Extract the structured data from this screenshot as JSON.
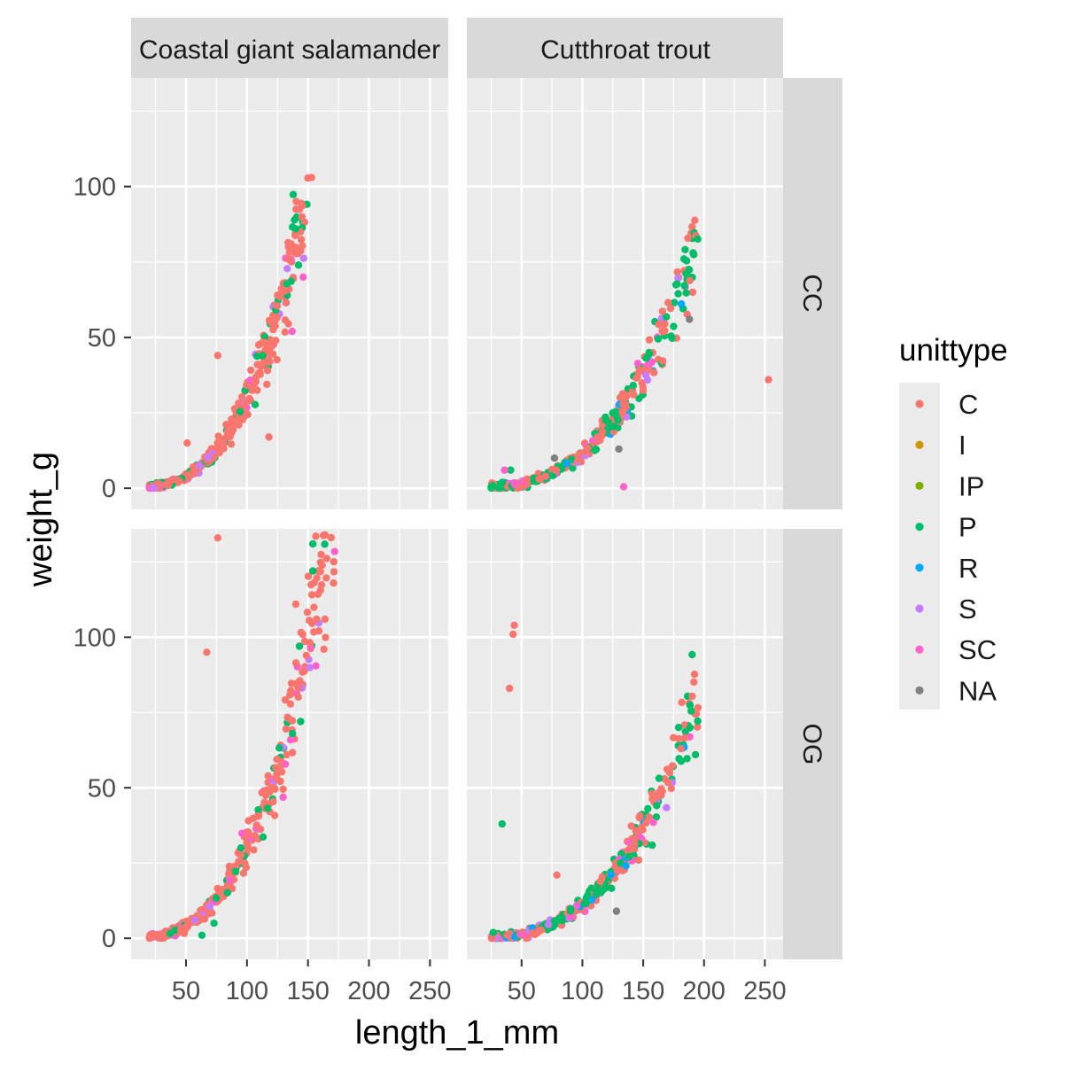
{
  "chart_data": {
    "type": "scatter",
    "xlabel": "length_1_mm",
    "ylabel": "weight_g",
    "xlim": [
      5,
      265
    ],
    "ylim": [
      -7,
      136
    ],
    "x_ticks": [
      50,
      100,
      150,
      200,
      250
    ],
    "x_tick_labels": [
      "50",
      "100",
      "150",
      "200",
      "250"
    ],
    "y_ticks": [
      0,
      50,
      100
    ],
    "y_tick_labels": [
      "0",
      "50",
      "100"
    ],
    "grid": true,
    "facet_cols": [
      "Coastal giant salamander",
      "Cutthroat trout"
    ],
    "facet_rows": [
      "CC",
      "OG"
    ],
    "legend": {
      "title": "unittype",
      "position": "right",
      "entries": [
        {
          "label": "C",
          "color": "#F8766D"
        },
        {
          "label": "I",
          "color": "#CD9600"
        },
        {
          "label": "IP",
          "color": "#7CAE00"
        },
        {
          "label": "P",
          "color": "#00BE67"
        },
        {
          "label": "R",
          "color": "#00A9FF"
        },
        {
          "label": "S",
          "color": "#C77CFF"
        },
        {
          "label": "SC",
          "color": "#FF61CC"
        },
        {
          "label": "NA",
          "color": "#808080"
        }
      ]
    },
    "panels": [
      {
        "col": "Coastal giant salamander",
        "row": "CC",
        "curve": {
          "a": 4.75e-05,
          "b": 2.9,
          "x_range": [
            20,
            150
          ]
        },
        "outliers": [
          {
            "x": 153,
            "y": 103,
            "unittype": "C"
          },
          {
            "x": 145,
            "y": 90,
            "unittype": "C"
          },
          {
            "x": 140,
            "y": 86,
            "unittype": "P"
          },
          {
            "x": 134,
            "y": 80,
            "unittype": "C"
          },
          {
            "x": 76,
            "y": 44,
            "unittype": "C"
          },
          {
            "x": 118,
            "y": 17,
            "unittype": "C"
          },
          {
            "x": 51,
            "y": 15,
            "unittype": "C"
          },
          {
            "x": 137,
            "y": 52,
            "unittype": "SC"
          }
        ]
      },
      {
        "col": "Cutthroat trout",
        "row": "CC",
        "curve": {
          "a": 1.45e-05,
          "b": 2.95,
          "x_range": [
            25,
            195
          ]
        },
        "outliers": [
          {
            "x": 253,
            "y": 36,
            "unittype": "C"
          },
          {
            "x": 134,
            "y": 0.5,
            "unittype": "SC"
          },
          {
            "x": 41,
            "y": 6,
            "unittype": "P"
          },
          {
            "x": 36,
            "y": 6,
            "unittype": "SC"
          },
          {
            "x": 130,
            "y": 13,
            "unittype": "NA"
          },
          {
            "x": 77,
            "y": 10,
            "unittype": "NA"
          },
          {
            "x": 191,
            "y": 78,
            "unittype": "P"
          },
          {
            "x": 188,
            "y": 56,
            "unittype": "NA"
          }
        ]
      },
      {
        "col": "Coastal giant salamander",
        "row": "OG",
        "curve": {
          "a": 4.75e-05,
          "b": 2.9,
          "x_range": [
            20,
            172
          ]
        },
        "outliers": [
          {
            "x": 76,
            "y": 133,
            "unittype": "C"
          },
          {
            "x": 67,
            "y": 95,
            "unittype": "C"
          },
          {
            "x": 164,
            "y": 134,
            "unittype": "C"
          },
          {
            "x": 154,
            "y": 131,
            "unittype": "P"
          },
          {
            "x": 154,
            "y": 122,
            "unittype": "P"
          },
          {
            "x": 171,
            "y": 118,
            "unittype": "C"
          },
          {
            "x": 140,
            "y": 111,
            "unittype": "C"
          },
          {
            "x": 157,
            "y": 106,
            "unittype": "C"
          },
          {
            "x": 164,
            "y": 106,
            "unittype": "C"
          },
          {
            "x": 163,
            "y": 96,
            "unittype": "C"
          },
          {
            "x": 143,
            "y": 97,
            "unittype": "P"
          },
          {
            "x": 144,
            "y": 72,
            "unittype": "P"
          },
          {
            "x": 63,
            "y": 1,
            "unittype": "P"
          },
          {
            "x": 73,
            "y": 5,
            "unittype": "P"
          }
        ]
      },
      {
        "col": "Cutthroat trout",
        "row": "OG",
        "curve": {
          "a": 1.4e-05,
          "b": 2.95,
          "x_range": [
            25,
            195
          ]
        },
        "outliers": [
          {
            "x": 44,
            "y": 104,
            "unittype": "C"
          },
          {
            "x": 43,
            "y": 101,
            "unittype": "C"
          },
          {
            "x": 40,
            "y": 83,
            "unittype": "C"
          },
          {
            "x": 34,
            "y": 38,
            "unittype": "P"
          },
          {
            "x": 79,
            "y": 21,
            "unittype": "C"
          },
          {
            "x": 181,
            "y": 63,
            "unittype": "C"
          },
          {
            "x": 193,
            "y": 61,
            "unittype": "P"
          },
          {
            "x": 128,
            "y": 9,
            "unittype": "NA"
          }
        ]
      }
    ]
  }
}
